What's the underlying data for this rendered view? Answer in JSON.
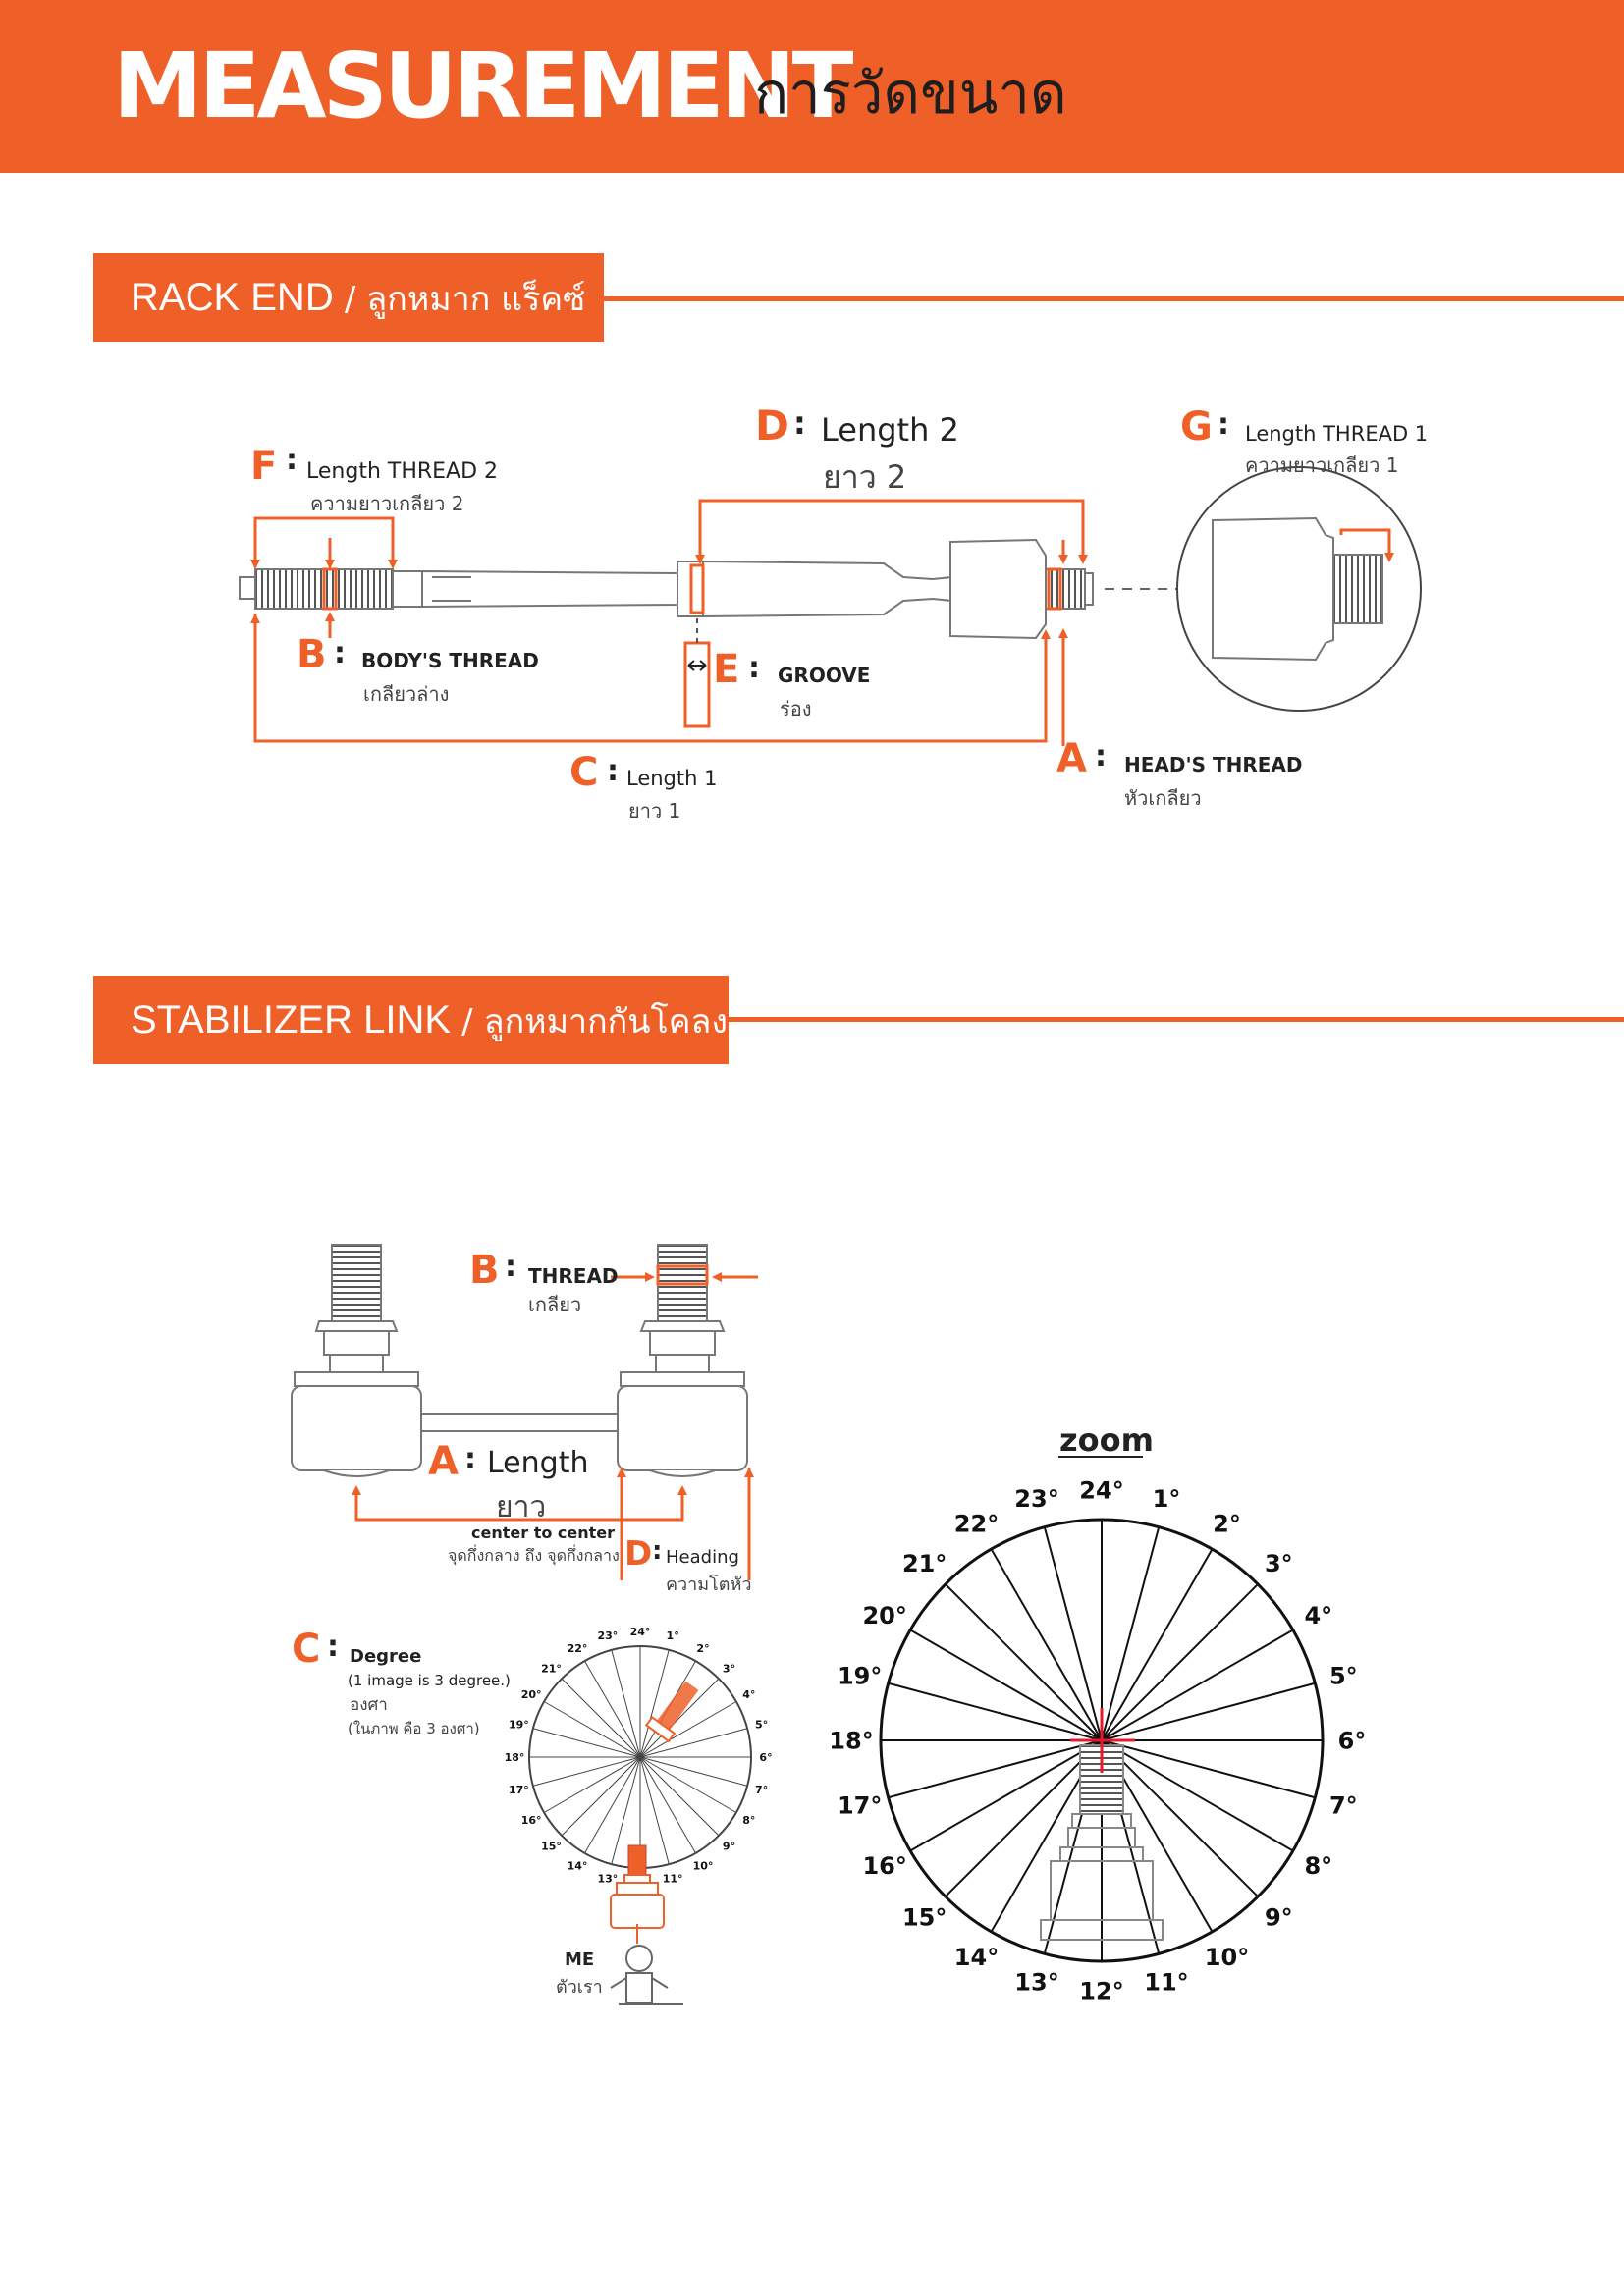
{
  "header": {
    "title": "MEASUREMENT",
    "title_th": "การวัดขนาด"
  },
  "rack_end": {
    "title": "RACK END",
    "separator": "/",
    "title_th": "ลูกหมาก แร็คซ์",
    "labels": {
      "A": {
        "letter": "A",
        "colon": ":",
        "en": "HEAD'S THREAD",
        "th": "หัวเกลียว"
      },
      "B": {
        "letter": "B",
        "colon": ":",
        "en": "BODY'S THREAD",
        "th": "เกลียวล่าง"
      },
      "C": {
        "letter": "C",
        "colon": ":",
        "en": "Length 1",
        "th": "ยาว 1"
      },
      "D": {
        "letter": "D",
        "colon": ":",
        "en": "Length 2",
        "th": "ยาว 2"
      },
      "E": {
        "letter": "E",
        "colon": ":",
        "en": "GROOVE",
        "th": "ร่อง"
      },
      "F": {
        "letter": "F",
        "colon": ":",
        "en": "Length THREAD 2",
        "th": "ความยาวเกลียว 2"
      },
      "G": {
        "letter": "G",
        "colon": ":",
        "en": "Length THREAD 1",
        "th": "ความยาวเกลียว 1"
      }
    }
  },
  "stabilizer_link": {
    "title": "STABILIZER LINK",
    "separator": "/",
    "title_th": "ลูกหมากกันโคลง",
    "labels": {
      "A": {
        "letter": "A",
        "colon": ":",
        "en": "Length",
        "th": "ยาว",
        "note_en": "center to center",
        "note_th": "จุดกึ่งกลาง ถึง จุดกึ่งกลาง"
      },
      "B": {
        "letter": "B",
        "colon": ":",
        "en": "THREAD",
        "th": "เกลียว"
      },
      "C": {
        "letter": "C",
        "colon": ":",
        "en": "Degree",
        "note_en": "(1 image is 3 degree.)",
        "th": "องศา",
        "note_th": "(ในภาพ คือ 3 องศา)"
      },
      "D": {
        "letter": "D",
        "colon": ":",
        "en": "Heading",
        "th": "ความโตหัว"
      }
    },
    "me": {
      "en": "ME",
      "th": "ตัวเรา"
    },
    "zoom_label": "zoom",
    "degrees": [
      "24°",
      "1°",
      "2°",
      "3°",
      "4°",
      "5°",
      "6°",
      "7°",
      "8°",
      "9°",
      "10°",
      "11°",
      "12°",
      "13°",
      "14°",
      "15°",
      "16°",
      "17°",
      "18°",
      "19°",
      "20°",
      "21°",
      "22°",
      "23°"
    ]
  },
  "colors": {
    "accent": "#ef6028",
    "line": "#ef6028",
    "text": "#222222"
  }
}
